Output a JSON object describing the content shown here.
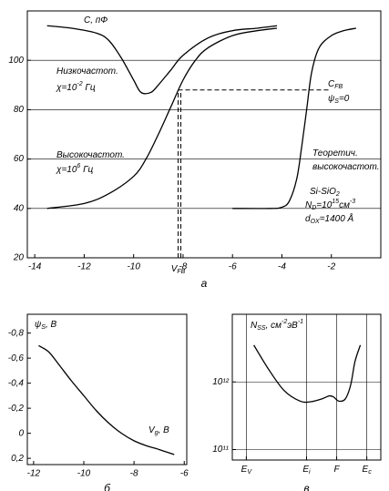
{
  "chart_data": [
    {
      "type": "line",
      "caption": "а",
      "xlim": [
        -14.3,
        0
      ],
      "ylim": [
        20,
        120
      ],
      "xticks": [
        -14,
        -12,
        -10,
        -8,
        -6,
        -4,
        -2
      ],
      "yticks": [
        20,
        40,
        60,
        80,
        100
      ],
      "grid": true,
      "series": [
        {
          "color": "#000000",
          "x": [
            -13.5,
            -12.5,
            -11.5,
            -11,
            -10.5,
            -10,
            -9.7,
            -9.3,
            -9,
            -8.5,
            -8,
            -7,
            -6,
            -5,
            -4.2
          ],
          "values": [
            114,
            113,
            111,
            108,
            101,
            92,
            87,
            87,
            90,
            96,
            102,
            109,
            112,
            113,
            114
          ]
        },
        {
          "color": "#000000",
          "x": [
            -13.5,
            -12,
            -11,
            -10,
            -9.5,
            -9,
            -8.5,
            -8,
            -7.5,
            -7,
            -6,
            -5,
            -4.2
          ],
          "values": [
            40,
            42,
            46,
            53,
            60,
            70,
            81,
            92,
            100,
            105,
            110,
            112,
            113
          ]
        },
        {
          "color": "#000000",
          "x": [
            -6,
            -4.5,
            -4,
            -3.7,
            -3.4,
            -3.2,
            -3,
            -2.8,
            -2.5,
            -2,
            -1.5,
            -1
          ],
          "values": [
            40,
            40,
            40.5,
            43,
            52,
            65,
            80,
            95,
            105,
            110,
            112,
            113
          ]
        }
      ],
      "vfb": {
        "value": -8.2,
        "parts": [
          {
            "t": "V"
          },
          {
            "t": "FB",
            "s": "sub"
          }
        ]
      },
      "cfb": 88,
      "annotations": [
        {
          "parts": [
            {
              "t": "C, пФ"
            }
          ]
        },
        {
          "parts": [
            {
              "t": "Низкочастот."
            }
          ]
        },
        {
          "parts": [
            {
              "t": "χ=10"
            },
            {
              "t": "-2",
              "s": "sup"
            },
            {
              "t": " Гц"
            }
          ]
        },
        {
          "parts": [
            {
              "t": "Высокочастот."
            }
          ]
        },
        {
          "parts": [
            {
              "t": "χ=10"
            },
            {
              "t": "6",
              "s": "sup"
            },
            {
              "t": " Гц"
            }
          ]
        },
        {
          "parts": [
            {
              "t": "C"
            },
            {
              "t": "FB",
              "s": "sub"
            }
          ]
        },
        {
          "parts": [
            {
              "t": "ψ"
            },
            {
              "t": "S",
              "s": "sub"
            },
            {
              "t": "=0"
            }
          ]
        },
        {
          "parts": [
            {
              "t": "Теоретич."
            }
          ]
        },
        {
          "parts": [
            {
              "t": "высокочастот."
            }
          ]
        },
        {
          "parts": [
            {
              "t": "Si-SiO"
            },
            {
              "t": "2",
              "s": "sub"
            }
          ]
        },
        {
          "parts": [
            {
              "t": "N"
            },
            {
              "t": "D",
              "s": "sub"
            },
            {
              "t": "=10"
            },
            {
              "t": "15",
              "s": "sup"
            },
            {
              "t": "см"
            },
            {
              "t": "-3",
              "s": "sup"
            }
          ]
        },
        {
          "parts": [
            {
              "t": "d"
            },
            {
              "t": "OX",
              "s": "sub"
            },
            {
              "t": "=1400 Å"
            }
          ]
        }
      ]
    },
    {
      "type": "line",
      "caption": "б",
      "xlim": [
        -12.25,
        -5.9
      ],
      "ylim": [
        -0.95,
        0.25
      ],
      "y_inverted": true,
      "xticks": [
        -12,
        -10,
        -8,
        -6
      ],
      "yticks": [
        {
          "value": -0.8,
          "label": "-0,8"
        },
        {
          "value": -0.6,
          "label": "-0,6"
        },
        {
          "value": -0.4,
          "label": "-0,4"
        },
        {
          "value": -0.2,
          "label": "-0,2"
        },
        0,
        {
          "value": 0.2,
          "label": "0,2"
        }
      ],
      "grid": false,
      "series": [
        {
          "color": "#000000",
          "x": [
            -11.8,
            -11.4,
            -11,
            -10.5,
            -10,
            -9.5,
            -9,
            -8.5,
            -8,
            -7.5,
            -7,
            -6.4
          ],
          "values": [
            -0.7,
            -0.65,
            -0.55,
            -0.42,
            -0.3,
            -0.18,
            -0.08,
            0.0,
            0.06,
            0.1,
            0.13,
            0.17
          ]
        }
      ],
      "annotations": [
        {
          "parts": [
            {
              "t": "ψ"
            },
            {
              "t": "S",
              "s": "sub"
            },
            {
              "t": ", B"
            }
          ]
        },
        {
          "parts": [
            {
              "t": "V"
            },
            {
              "t": "g",
              "s": "sub"
            },
            {
              "t": ", B"
            }
          ]
        }
      ]
    },
    {
      "type": "line",
      "caption": "в",
      "xlim": [
        -0.13,
        1.25
      ],
      "ylim": [
        70000000000,
        10000000000000
      ],
      "log_y": true,
      "xticks": [
        {
          "value": 0,
          "label": "E",
          "sub": "V"
        },
        {
          "value": 0.56,
          "label": "E",
          "sub": "i"
        },
        {
          "value": 0.84,
          "label": "F"
        },
        {
          "value": 1.12,
          "label": "E",
          "sub": "c"
        }
      ],
      "yticks": [
        {
          "value": 100000000000,
          "label": "10¹¹"
        },
        {
          "value": 1000000000000,
          "label": "10¹²"
        }
      ],
      "grid": true,
      "xgrid": true,
      "series": [
        {
          "color": "#000000",
          "x": [
            0.07,
            0.2,
            0.35,
            0.5,
            0.6,
            0.7,
            0.77,
            0.81,
            0.86,
            0.92,
            0.97,
            1.01,
            1.06
          ],
          "values": [
            3500000000000,
            1600000000000,
            750000000000,
            520000000000,
            510000000000,
            560000000000,
            620000000000,
            600000000000,
            520000000000,
            560000000000,
            900000000000,
            2000000000000,
            3500000000000
          ]
        }
      ],
      "annotations": [
        {
          "parts": [
            {
              "t": "N"
            },
            {
              "t": "SS",
              "s": "sub"
            },
            {
              "t": ", см"
            },
            {
              "t": "-2",
              "s": "sup"
            },
            {
              "t": "эВ"
            },
            {
              "t": "-1",
              "s": "sup"
            }
          ]
        }
      ]
    }
  ]
}
